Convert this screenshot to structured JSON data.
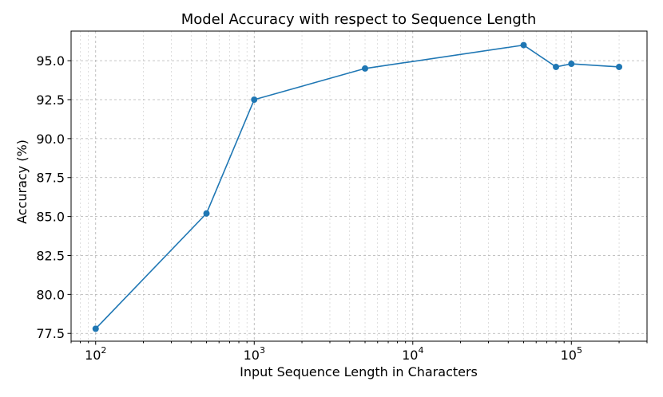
{
  "chart_data": {
    "type": "line",
    "title": "Model Accuracy with respect to Sequence Length",
    "xlabel": "Input Sequence Length in Characters",
    "ylabel": "Accuracy (%)",
    "x_scale": "log",
    "xlim": [
      70,
      300000
    ],
    "ylim": [
      77.0,
      96.9
    ],
    "x_major_ticks": [
      {
        "value": 100,
        "base": "10",
        "exp": "2"
      },
      {
        "value": 1000,
        "base": "10",
        "exp": "3"
      },
      {
        "value": 10000,
        "base": "10",
        "exp": "4"
      },
      {
        "value": 100000,
        "base": "10",
        "exp": "5"
      }
    ],
    "y_ticks": [
      {
        "value": 77.5,
        "label": "77.5"
      },
      {
        "value": 80.0,
        "label": "80.0"
      },
      {
        "value": 82.5,
        "label": "82.5"
      },
      {
        "value": 85.0,
        "label": "85.0"
      },
      {
        "value": 87.5,
        "label": "87.5"
      },
      {
        "value": 90.0,
        "label": "90.0"
      },
      {
        "value": 92.5,
        "label": "92.5"
      },
      {
        "value": 95.0,
        "label": "95.0"
      }
    ],
    "grid": true,
    "series": [
      {
        "color": "#1f77b4",
        "marker": "circle",
        "x": [
          100,
          500,
          1000,
          5000,
          50000,
          80000,
          100000,
          200000
        ],
        "y": [
          77.8,
          85.2,
          92.5,
          94.5,
          96.0,
          94.6,
          94.8,
          94.6
        ]
      }
    ]
  }
}
